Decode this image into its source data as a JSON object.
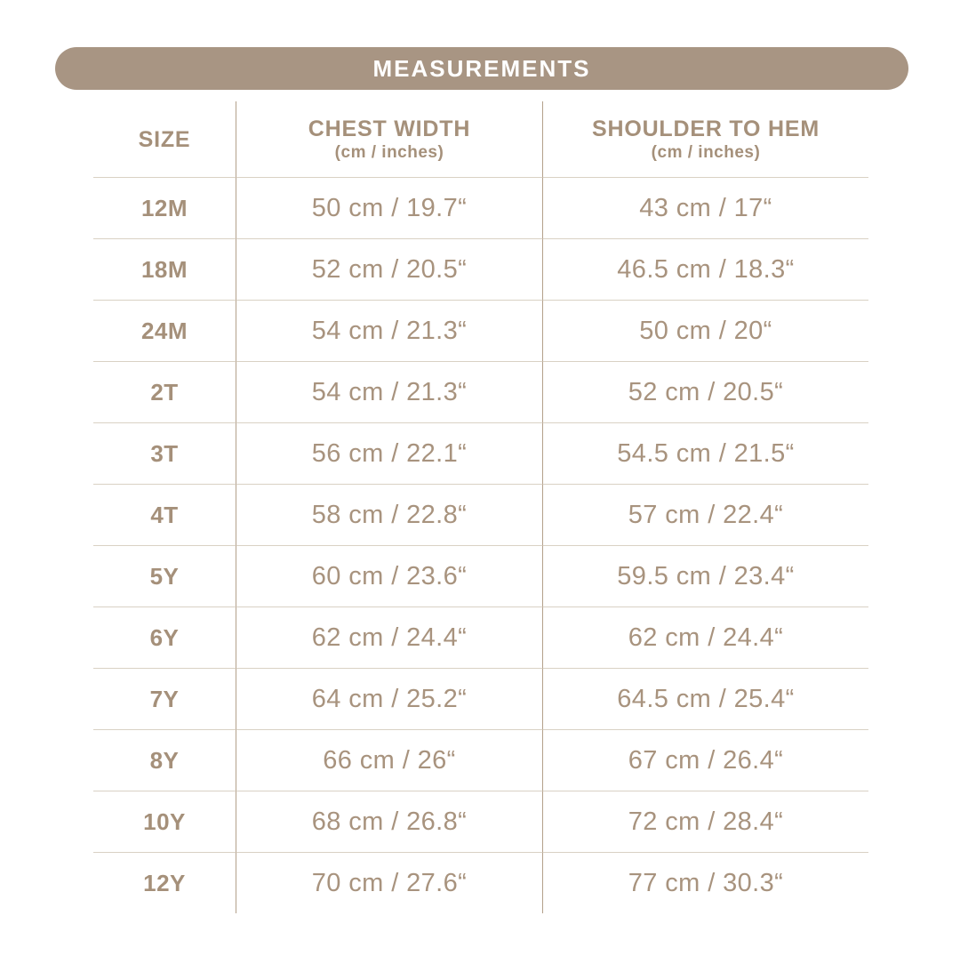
{
  "colors": {
    "accent": "#a89583",
    "heading_text": "#a5907a",
    "value_text": "#a8937e",
    "horizontal_rule": "#d9d1c4",
    "vertical_rule": "#b3a08b",
    "title_text": "#ffffff",
    "background": "#ffffff"
  },
  "chart_data": {
    "type": "table",
    "title": "MEASUREMENTS",
    "columns": [
      {
        "label": "SIZE",
        "sublabel": ""
      },
      {
        "label": "CHEST WIDTH",
        "sublabel": "(cm / inches)"
      },
      {
        "label": "SHOULDER TO HEM",
        "sublabel": "(cm / inches)"
      }
    ],
    "rows": [
      {
        "size": "12M",
        "chest_width": "50 cm / 19.7“",
        "shoulder_to_hem": "43 cm / 17“"
      },
      {
        "size": "18M",
        "chest_width": "52 cm / 20.5“",
        "shoulder_to_hem": "46.5 cm / 18.3“"
      },
      {
        "size": "24M",
        "chest_width": "54 cm / 21.3“",
        "shoulder_to_hem": "50 cm / 20“"
      },
      {
        "size": "2T",
        "chest_width": "54 cm / 21.3“",
        "shoulder_to_hem": "52 cm / 20.5“"
      },
      {
        "size": "3T",
        "chest_width": "56 cm / 22.1“",
        "shoulder_to_hem": "54.5 cm / 21.5“"
      },
      {
        "size": "4T",
        "chest_width": "58 cm / 22.8“",
        "shoulder_to_hem": "57 cm / 22.4“"
      },
      {
        "size": "5Y",
        "chest_width": "60 cm / 23.6“",
        "shoulder_to_hem": "59.5 cm / 23.4“"
      },
      {
        "size": "6Y",
        "chest_width": "62 cm / 24.4“",
        "shoulder_to_hem": "62 cm / 24.4“"
      },
      {
        "size": "7Y",
        "chest_width": "64 cm / 25.2“",
        "shoulder_to_hem": "64.5 cm / 25.4“"
      },
      {
        "size": "8Y",
        "chest_width": "66 cm / 26“",
        "shoulder_to_hem": "67 cm / 26.4“"
      },
      {
        "size": "10Y",
        "chest_width": "68 cm / 26.8“",
        "shoulder_to_hem": "72 cm / 28.4“"
      },
      {
        "size": "12Y",
        "chest_width": "70 cm / 27.6“",
        "shoulder_to_hem": "77 cm / 30.3“"
      }
    ]
  }
}
